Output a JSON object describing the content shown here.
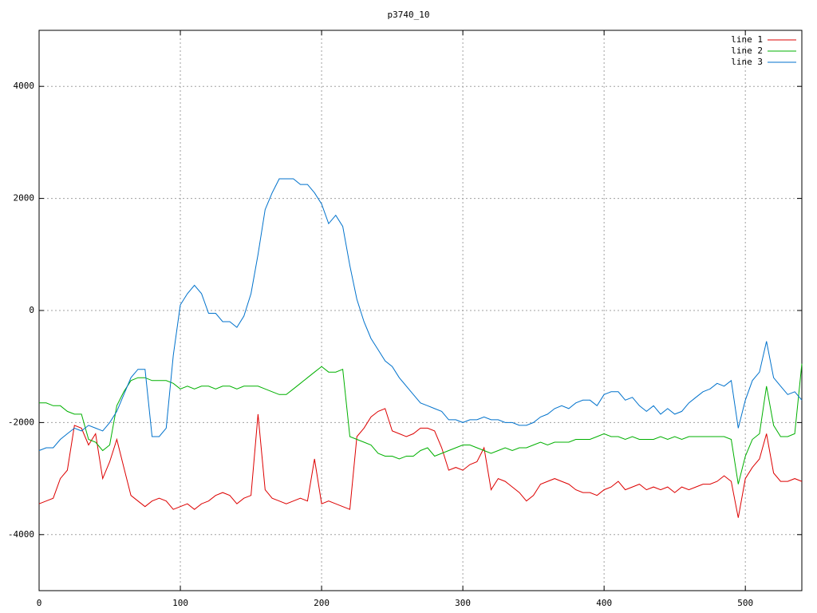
{
  "chart_data": {
    "type": "line",
    "title": "p3740_10",
    "x": [
      0,
      5,
      10,
      15,
      20,
      25,
      30,
      35,
      40,
      45,
      50,
      55,
      60,
      65,
      70,
      75,
      80,
      85,
      90,
      95,
      100,
      105,
      110,
      115,
      120,
      125,
      130,
      135,
      140,
      145,
      150,
      155,
      160,
      165,
      170,
      175,
      180,
      185,
      190,
      195,
      200,
      205,
      210,
      215,
      220,
      225,
      230,
      235,
      240,
      245,
      250,
      255,
      260,
      265,
      270,
      275,
      280,
      285,
      290,
      295,
      300,
      305,
      310,
      315,
      320,
      325,
      330,
      335,
      340,
      345,
      350,
      355,
      360,
      365,
      370,
      375,
      380,
      385,
      390,
      395,
      400,
      405,
      410,
      415,
      420,
      425,
      430,
      435,
      440,
      445,
      450,
      455,
      460,
      465,
      470,
      475,
      480,
      485,
      490,
      495,
      500,
      505,
      510,
      515,
      520,
      525,
      530,
      535,
      540
    ],
    "series": [
      {
        "name": "line 1",
        "color": "#dd0000",
        "values": [
          -3450,
          -3400,
          -3350,
          -3000,
          -2850,
          -2050,
          -2100,
          -2400,
          -2200,
          -3000,
          -2700,
          -2300,
          -2800,
          -3300,
          -3400,
          -3500,
          -3400,
          -3350,
          -3400,
          -3550,
          -3500,
          -3450,
          -3550,
          -3450,
          -3400,
          -3300,
          -3250,
          -3300,
          -3450,
          -3350,
          -3300,
          -1850,
          -3200,
          -3350,
          -3400,
          -3450,
          -3400,
          -3350,
          -3400,
          -2650,
          -3450,
          -3400,
          -3450,
          -3500,
          -3550,
          -2250,
          -2100,
          -1900,
          -1800,
          -1750,
          -2150,
          -2200,
          -2250,
          -2200,
          -2100,
          -2100,
          -2150,
          -2450,
          -2850,
          -2800,
          -2850,
          -2750,
          -2700,
          -2450,
          -3200,
          -3000,
          -3050,
          -3150,
          -3250,
          -3400,
          -3300,
          -3100,
          -3050,
          -3000,
          -3050,
          -3100,
          -3200,
          -3250,
          -3250,
          -3300,
          -3200,
          -3150,
          -3050,
          -3200,
          -3150,
          -3100,
          -3200,
          -3150,
          -3200,
          -3150,
          -3250,
          -3150,
          -3200,
          -3150,
          -3100,
          -3100,
          -3050,
          -2950,
          -3050,
          -3700,
          -3000,
          -2800,
          -2650,
          -2200,
          -2900,
          -3050,
          -3050,
          -3000,
          -3050
        ]
      },
      {
        "name": "line 2",
        "color": "#00b000",
        "values": [
          -1650,
          -1650,
          -1700,
          -1700,
          -1800,
          -1850,
          -1850,
          -2300,
          -2350,
          -2500,
          -2400,
          -1700,
          -1450,
          -1250,
          -1200,
          -1200,
          -1250,
          -1250,
          -1250,
          -1300,
          -1400,
          -1350,
          -1400,
          -1350,
          -1350,
          -1400,
          -1350,
          -1350,
          -1400,
          -1350,
          -1350,
          -1350,
          -1400,
          -1450,
          -1500,
          -1500,
          -1400,
          -1300,
          -1200,
          -1100,
          -1000,
          -1100,
          -1100,
          -1050,
          -2250,
          -2300,
          -2350,
          -2400,
          -2550,
          -2600,
          -2600,
          -2650,
          -2600,
          -2600,
          -2500,
          -2450,
          -2600,
          -2550,
          -2500,
          -2450,
          -2400,
          -2400,
          -2450,
          -2500,
          -2550,
          -2500,
          -2450,
          -2500,
          -2450,
          -2450,
          -2400,
          -2350,
          -2400,
          -2350,
          -2350,
          -2350,
          -2300,
          -2300,
          -2300,
          -2250,
          -2200,
          -2250,
          -2250,
          -2300,
          -2250,
          -2300,
          -2300,
          -2300,
          -2250,
          -2300,
          -2250,
          -2300,
          -2250,
          -2250,
          -2250,
          -2250,
          -2250,
          -2250,
          -2300,
          -3100,
          -2600,
          -2300,
          -2200,
          -1350,
          -2050,
          -2250,
          -2250,
          -2200,
          -950
        ]
      },
      {
        "name": "line 3",
        "color": "#0072cc",
        "values": [
          -2500,
          -2450,
          -2450,
          -2300,
          -2200,
          -2100,
          -2150,
          -2050,
          -2100,
          -2150,
          -2000,
          -1800,
          -1500,
          -1200,
          -1050,
          -1050,
          -2250,
          -2250,
          -2100,
          -800,
          100,
          300,
          450,
          300,
          -50,
          -50,
          -200,
          -200,
          -300,
          -100,
          300,
          1000,
          1800,
          2100,
          2350,
          2350,
          2350,
          2250,
          2250,
          2100,
          1900,
          1550,
          1700,
          1500,
          800,
          200,
          -200,
          -500,
          -700,
          -900,
          -1000,
          -1200,
          -1350,
          -1500,
          -1650,
          -1700,
          -1750,
          -1800,
          -1950,
          -1950,
          -2000,
          -1950,
          -1950,
          -1900,
          -1950,
          -1950,
          -2000,
          -2000,
          -2050,
          -2050,
          -2000,
          -1900,
          -1850,
          -1750,
          -1700,
          -1750,
          -1650,
          -1600,
          -1600,
          -1700,
          -1500,
          -1450,
          -1450,
          -1600,
          -1550,
          -1700,
          -1800,
          -1700,
          -1850,
          -1750,
          -1850,
          -1800,
          -1650,
          -1550,
          -1450,
          -1400,
          -1300,
          -1350,
          -1250,
          -2100,
          -1600,
          -1250,
          -1100,
          -550,
          -1200,
          -1350,
          -1500,
          -1450,
          -1600
        ]
      }
    ],
    "xlim": [
      0,
      540
    ],
    "xticks": [
      0,
      100,
      200,
      300,
      400,
      500
    ],
    "ylim": [
      -5000,
      5000
    ],
    "yticks": [
      -4000,
      -2000,
      0,
      2000,
      4000
    ],
    "grid": true,
    "legend": "top-right"
  }
}
